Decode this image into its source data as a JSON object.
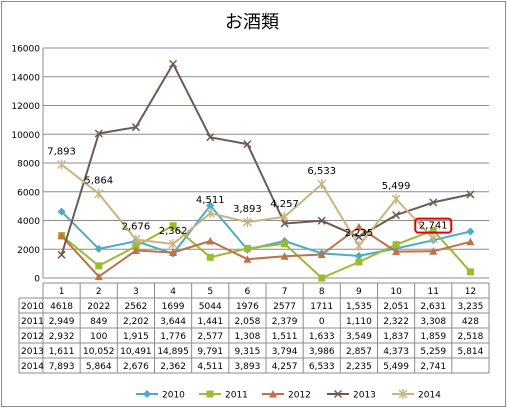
{
  "chart_data": {
    "type": "line",
    "title": "お酒類",
    "categories": [
      "1",
      "2",
      "3",
      "4",
      "5",
      "6",
      "7",
      "8",
      "9",
      "10",
      "11",
      "12"
    ],
    "ylim": [
      0,
      16000
    ],
    "yticks": [
      "0",
      "2000",
      "4000",
      "6000",
      "8000",
      "10000",
      "12000",
      "14000",
      "16000"
    ],
    "grid": true,
    "legend_position": "bottom",
    "series": [
      {
        "name": "2010",
        "color": "#4bacc6",
        "marker": "diamond",
        "values": [
          4618,
          2022,
          2562,
          1699,
          5044,
          1976,
          2577,
          1711,
          1535,
          2051,
          2631,
          3235
        ],
        "labels": [
          "4618",
          "2022",
          "2562",
          "1699",
          "5044",
          "1976",
          "2577",
          "1711",
          "1,535",
          "2,051",
          "2,631",
          "3,235"
        ]
      },
      {
        "name": "2011",
        "color": "#9bbb30",
        "marker": "square",
        "values": [
          2949,
          849,
          2202,
          3644,
          1441,
          2058,
          2379,
          0,
          1110,
          2322,
          3308,
          428
        ],
        "labels": [
          "2,949",
          "849",
          "2,202",
          "3,644",
          "1,441",
          "2,058",
          "2,379",
          "0",
          "1,110",
          "2,322",
          "3,308",
          "428"
        ]
      },
      {
        "name": "2012",
        "color": "#c0704a",
        "marker": "triangle",
        "values": [
          2932,
          100,
          1915,
          1776,
          2577,
          1308,
          1511,
          1633,
          3549,
          1837,
          1859,
          2518
        ],
        "labels": [
          "2,932",
          "100",
          "1,915",
          "1,776",
          "2,577",
          "1,308",
          "1,511",
          "1,633",
          "3,549",
          "1,837",
          "1,859",
          "2,518"
        ]
      },
      {
        "name": "2013",
        "color": "#6e5a52",
        "marker": "x",
        "values": [
          1611,
          10052,
          10491,
          14895,
          9791,
          9315,
          3794,
          3986,
          2857,
          4373,
          5259,
          5814
        ],
        "labels": [
          "1,611",
          "10,052",
          "10,491",
          "14,895",
          "9,791",
          "9,315",
          "3,794",
          "3,986",
          "2,857",
          "4,373",
          "5,259",
          "5,814"
        ]
      },
      {
        "name": "2014",
        "color": "#c8b482",
        "marker": "star",
        "values": [
          7893,
          5864,
          2676,
          2362,
          4511,
          3893,
          4257,
          6533,
          2235,
          5499,
          2741,
          null
        ],
        "labels": [
          "7,893",
          "5,864",
          "2,676",
          "2,362",
          "4,511",
          "3,893",
          "4,257",
          "6,533",
          "2,235",
          "5,499",
          "2,741",
          ""
        ]
      }
    ],
    "data_labels_series": "2014",
    "highlighted_label": {
      "series": "2014",
      "index": 10,
      "color": "#e60000"
    }
  }
}
